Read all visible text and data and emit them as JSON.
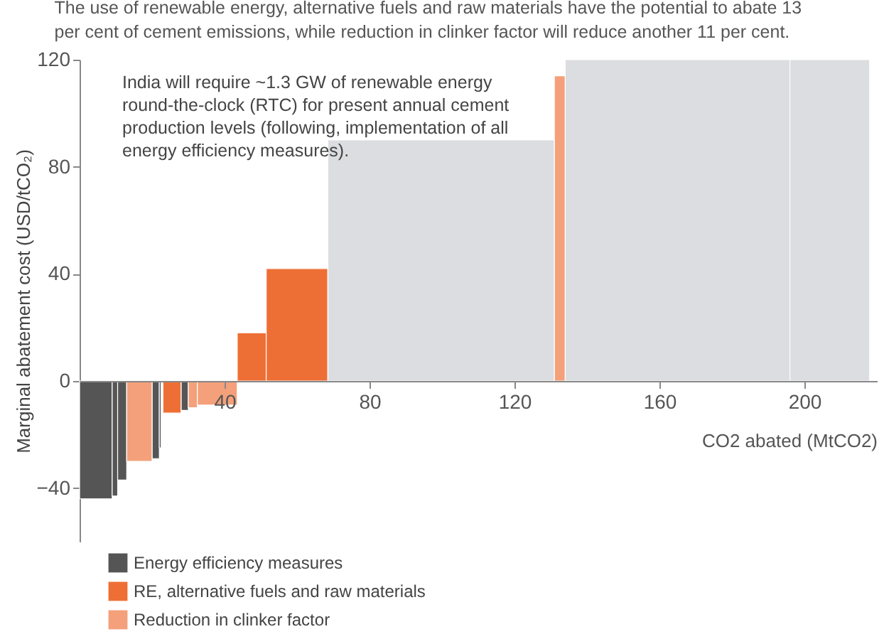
{
  "chart_data": {
    "type": "histogram",
    "title": "The use of renewable energy, alternative fuels and raw materials have the potential to abate 13\nper cent of cement emissions, while reduction in clinker factor will reduce another 11 per cent.",
    "xlabel": "CO2 abated (MtCO2)",
    "ylabel": "Marginal abatement cost (USD/tCO₂)",
    "annotations": [
      "India will require ~1.3 GW of renewable energy\nround-the-clock (RTC) for present annual cement\nproduction levels (following, implementation of all\nenergy efficiency measures)."
    ],
    "bins": [
      0,
      9,
      10.5,
      13,
      20,
      22,
      22.5,
      23,
      28,
      30,
      32.5,
      43.5,
      51.5,
      68.5,
      131,
      134,
      196,
      218
    ],
    "series": [
      {
        "name": "Energy efficiency measures",
        "color": "#555555",
        "values": [
          -44,
          -43,
          -37,
          null,
          -29,
          -25,
          null,
          null,
          -11,
          null,
          null,
          null,
          null,
          null,
          null,
          null,
          null
        ]
      },
      {
        "name": "RE, alternative fuels and raw materials",
        "color": "#ee6f35",
        "values": [
          null,
          null,
          null,
          null,
          null,
          null,
          null,
          -12,
          null,
          null,
          null,
          18,
          42,
          null,
          null,
          null,
          null
        ]
      },
      {
        "name": "Reduction in clinker factor",
        "color": "#f4a07a",
        "values": [
          null,
          null,
          null,
          -30,
          null,
          null,
          null,
          null,
          null,
          -10,
          -9,
          null,
          null,
          null,
          114,
          null,
          null
        ]
      },
      {
        "color": "#dcdde0",
        "values": [
          null,
          null,
          null,
          null,
          null,
          null,
          null,
          null,
          null,
          null,
          null,
          null,
          null,
          90,
          null,
          120,
          120
        ]
      }
    ],
    "xlim": [
      0,
      220
    ],
    "xticks": [
      40,
      80,
      120,
      160,
      200
    ],
    "ylim": [
      -60,
      120
    ],
    "yticks": [
      -40,
      0,
      40,
      80,
      120
    ],
    "legend": "bottom left"
  }
}
